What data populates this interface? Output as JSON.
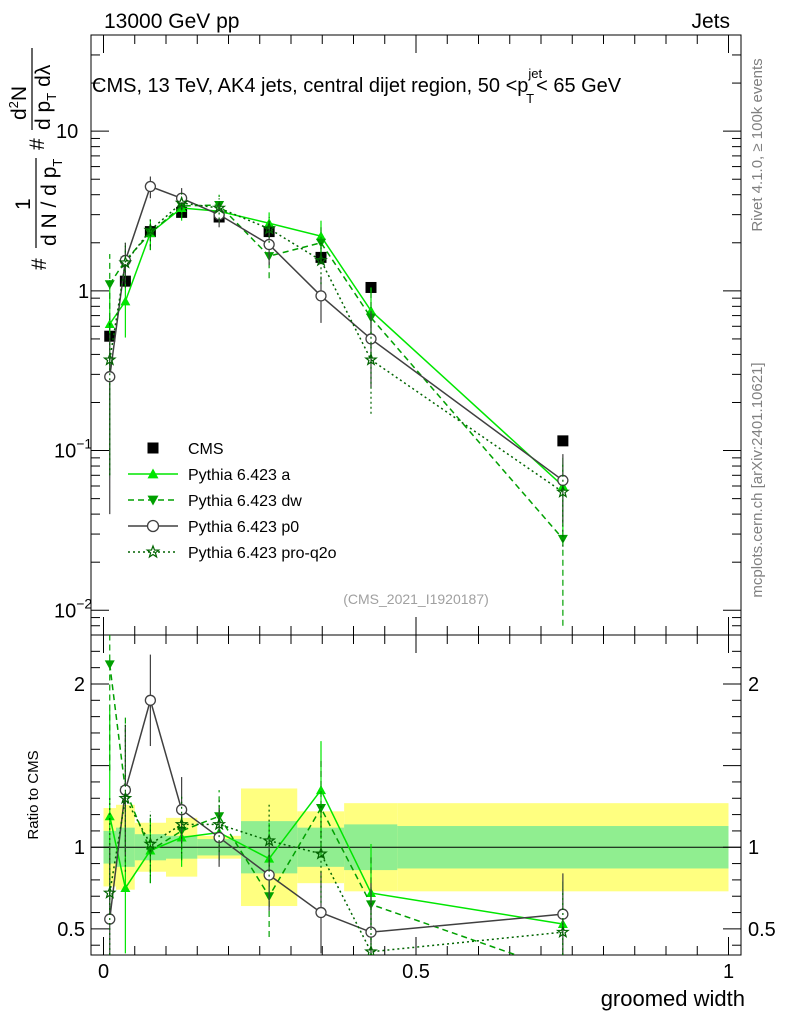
{
  "header": {
    "left": "13000 GeV pp",
    "right": "Jets"
  },
  "side_labels": {
    "rivet": "Rivet 4.1.0, ≥ 100k events",
    "mcplots": "mcplots.cern.ch [arXiv:2401.10621]"
  },
  "chart_data": {
    "type": "line",
    "title": "CMS, 13 TeV, AK4 jets, central dijet region, 50 <p_T^{jet}< 65 GeV",
    "title_parts": {
      "main": "CMS, 13 TeV, AK4 jets, central dijet region, 50 <p",
      "sup": "jet",
      "sub": "T",
      "end": "< 65 GeV"
    },
    "ylabel_parts": {
      "hash1": "#",
      "one": "1",
      "den": "d N / d p",
      "den_sub": "T",
      "hash2": "#",
      "num": "d",
      "num_sup": "2",
      "num_n": "N",
      "den2": "d p",
      "den2_sub": "T",
      "dl": "dλ"
    },
    "xlabel": "groomed width",
    "ratio_ylabel": "Ratio to CMS",
    "watermark": "(CMS_2021_I1920187)",
    "main_yscale": "log",
    "main_ylim": [
      0.007,
      40
    ],
    "xlim": [
      -0.02,
      1.02
    ],
    "ratio_ylim": [
      0.34,
      2.3
    ],
    "main_yticks": [
      {
        "v": 0.01,
        "base": "10",
        "exp": "−2"
      },
      {
        "v": 0.1,
        "base": "10",
        "exp": "−1"
      },
      {
        "v": 1,
        "base": "1",
        "exp": ""
      },
      {
        "v": 10,
        "base": "10",
        "exp": ""
      }
    ],
    "ratio_yticks": [
      {
        "v": 0.5,
        "label": "0.5"
      },
      {
        "v": 1,
        "label": "1"
      },
      {
        "v": 2,
        "label": "2"
      }
    ],
    "xticks": [
      {
        "v": 0,
        "label": "0"
      },
      {
        "v": 0.5,
        "label": "0.5"
      },
      {
        "v": 1,
        "label": "1"
      }
    ],
    "bins": [
      {
        "lo": 0.0,
        "hi": 0.02,
        "stat": 0.1,
        "tot": 0.24
      },
      {
        "lo": 0.02,
        "hi": 0.05,
        "stat": 0.12,
        "tot": 0.26
      },
      {
        "lo": 0.05,
        "hi": 0.1,
        "stat": 0.08,
        "tot": 0.15
      },
      {
        "lo": 0.1,
        "hi": 0.15,
        "stat": 0.07,
        "tot": 0.18
      },
      {
        "lo": 0.15,
        "hi": 0.22,
        "stat": 0.05,
        "tot": 0.07
      },
      {
        "lo": 0.22,
        "hi": 0.31,
        "stat": 0.16,
        "tot": 0.36
      },
      {
        "lo": 0.31,
        "hi": 0.385,
        "stat": 0.12,
        "tot": 0.22
      },
      {
        "lo": 0.385,
        "hi": 0.47,
        "stat": 0.14,
        "tot": 0.27
      },
      {
        "lo": 0.47,
        "hi": 1.0,
        "stat": 0.13,
        "tot": 0.27
      }
    ],
    "series": [
      {
        "name": "CMS",
        "color": "#000000",
        "marker": "square",
        "dash": "",
        "x": [
          0.01,
          0.035,
          0.075,
          0.125,
          0.185,
          0.265,
          0.348,
          0.428,
          0.735
        ],
        "y": [
          0.52,
          1.15,
          2.35,
          3.1,
          2.9,
          2.35,
          1.62,
          1.05,
          0.115
        ]
      },
      {
        "name": "Pythia 6.423 a",
        "color": "#00e600",
        "marker": "triangle-up",
        "dash": "",
        "x": [
          0.01,
          0.035,
          0.075,
          0.125,
          0.185,
          0.265,
          0.348,
          0.428,
          0.735
        ],
        "y": [
          0.62,
          0.86,
          2.3,
          3.3,
          3.15,
          2.65,
          2.2,
          0.75,
          0.06
        ],
        "err": [
          0.55,
          0.35,
          0.5,
          0.55,
          0.5,
          0.45,
          0.55,
          0.3,
          0.03
        ],
        "ratio": [
          1.19,
          0.75,
          0.98,
          1.06,
          1.09,
          0.93,
          1.35,
          0.72,
          0.53
        ],
        "ratio_err": [
          0.65,
          0.4,
          0.2,
          0.18,
          0.17,
          0.22,
          0.3,
          0.3,
          0.26
        ]
      },
      {
        "name": "Pythia 6.423 dw",
        "color": "#00a000",
        "marker": "triangle-down",
        "dash": "6,4",
        "x": [
          0.01,
          0.035,
          0.075,
          0.125,
          0.185,
          0.265,
          0.348,
          0.428,
          0.735
        ],
        "y": [
          1.1,
          1.55,
          2.3,
          3.4,
          3.45,
          1.65,
          2.0,
          0.68,
          0.028
        ],
        "err": [
          0.6,
          0.45,
          0.5,
          0.55,
          0.55,
          0.45,
          0.5,
          0.3,
          0.02
        ],
        "ratio": [
          2.12,
          1.35,
          0.98,
          1.1,
          1.19,
          0.7,
          1.24,
          0.65,
          0.24
        ],
        "ratio_err": [
          0.65,
          0.45,
          0.2,
          0.18,
          0.16,
          0.25,
          0.3,
          0.3,
          0.2
        ]
      },
      {
        "name": "Pythia 6.423 p0",
        "color": "#404040",
        "marker": "circle",
        "dash": "",
        "x": [
          0.01,
          0.035,
          0.075,
          0.125,
          0.185,
          0.265,
          0.348,
          0.428,
          0.735
        ],
        "y": [
          0.29,
          1.55,
          4.5,
          3.8,
          3.0,
          1.95,
          0.93,
          0.5,
          0.065
        ],
        "err": [
          0.25,
          0.45,
          0.7,
          0.6,
          0.5,
          0.5,
          0.3,
          0.25,
          0.03
        ],
        "ratio": [
          0.56,
          1.35,
          1.9,
          1.23,
          1.06,
          0.83,
          0.6,
          0.48,
          0.59
        ],
        "ratio_err": [
          0.45,
          0.4,
          0.28,
          0.2,
          0.18,
          0.22,
          0.25,
          0.3,
          0.25
        ]
      },
      {
        "name": "Pythia 6.423 pro-q2o",
        "color": "#006400",
        "marker": "star",
        "dash": "2,3",
        "x": [
          0.01,
          0.035,
          0.075,
          0.125,
          0.185,
          0.265,
          0.348,
          0.428,
          0.735
        ],
        "y": [
          0.37,
          1.5,
          2.4,
          3.55,
          3.3,
          2.45,
          1.55,
          0.37,
          0.055
        ],
        "err": [
          0.3,
          0.45,
          0.5,
          0.55,
          0.5,
          0.45,
          0.45,
          0.2,
          0.03
        ],
        "ratio": [
          0.72,
          1.3,
          1.02,
          1.14,
          1.14,
          1.04,
          0.96,
          0.36,
          0.48
        ],
        "ratio_err": [
          0.6,
          0.45,
          0.2,
          0.18,
          0.17,
          0.22,
          0.3,
          0.3,
          0.26
        ]
      }
    ]
  }
}
